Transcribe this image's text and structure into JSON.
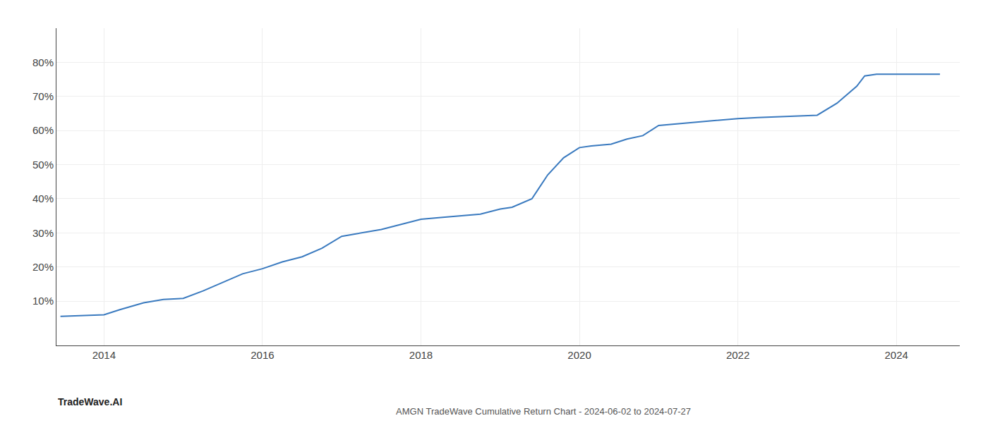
{
  "chart_data": {
    "type": "line",
    "title": "AMGN TradeWave Cumulative Return Chart - 2024-06-02 to 2024-07-27",
    "annotations": [
      "TradeWave.AI"
    ],
    "color": "#3a7abf",
    "grid": true,
    "x": [
      2013.45,
      2014.0,
      2014.2,
      2014.5,
      2014.75,
      2015.0,
      2015.25,
      2015.5,
      2015.75,
      2016.0,
      2016.25,
      2016.5,
      2016.75,
      2017.0,
      2017.25,
      2017.5,
      2017.75,
      2018.0,
      2018.25,
      2018.5,
      2018.75,
      2019.0,
      2019.15,
      2019.4,
      2019.6,
      2019.8,
      2020.0,
      2020.15,
      2020.4,
      2020.6,
      2020.8,
      2021.0,
      2021.25,
      2021.5,
      2021.75,
      2022.0,
      2022.25,
      2022.5,
      2022.75,
      2023.0,
      2023.25,
      2023.5,
      2023.6,
      2023.75,
      2024.0,
      2024.25,
      2024.55
    ],
    "values": [
      5.5,
      6.0,
      7.5,
      9.5,
      10.5,
      10.8,
      13.0,
      15.5,
      18.0,
      19.5,
      21.5,
      23.0,
      25.5,
      29.0,
      30.0,
      31.0,
      32.5,
      34.0,
      34.5,
      35.0,
      35.5,
      37.0,
      37.5,
      40.0,
      47.0,
      52.0,
      55.0,
      55.5,
      56.0,
      57.5,
      58.5,
      61.5,
      62.0,
      62.5,
      63.0,
      63.5,
      63.8,
      64.0,
      64.2,
      64.5,
      68.0,
      73.0,
      76.0,
      76.5,
      76.5,
      76.5,
      76.5
    ],
    "xlim": [
      2013.4,
      2024.8
    ],
    "xticks": [
      2014,
      2016,
      2018,
      2020,
      2022,
      2024
    ],
    "ylim": [
      -3,
      90
    ],
    "yticks": [
      {
        "value": 10,
        "label": "10%"
      },
      {
        "value": 20,
        "label": "20%"
      },
      {
        "value": 30,
        "label": "30%"
      },
      {
        "value": 40,
        "label": "40%"
      },
      {
        "value": 50,
        "label": "50%"
      },
      {
        "value": 60,
        "label": "60%"
      },
      {
        "value": 70,
        "label": "70%"
      },
      {
        "value": 80,
        "label": "80%"
      }
    ]
  }
}
